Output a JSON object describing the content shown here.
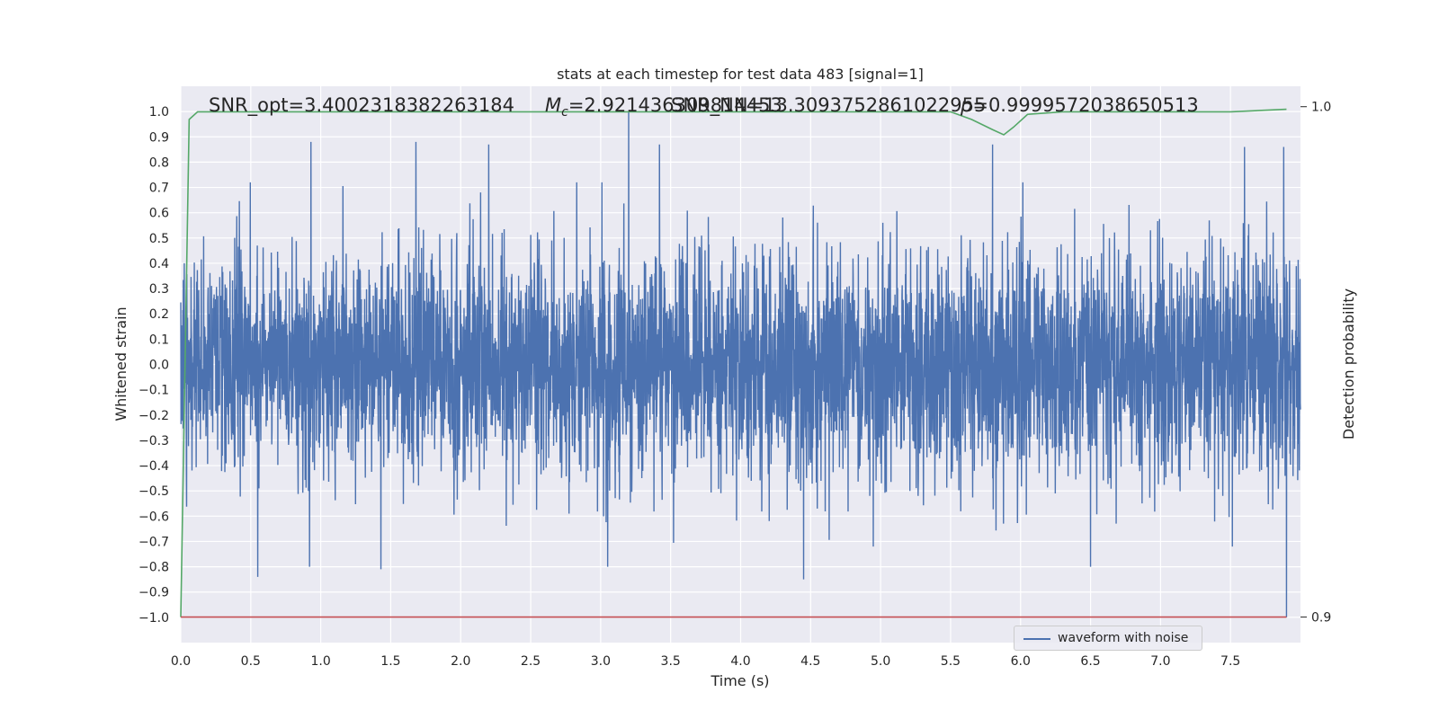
{
  "chart_data": {
    "type": "line",
    "title": "stats at each timestep for test data 483 [signal=1]",
    "xlabel": "Time (s)",
    "ylabel": "Whitened strain",
    "y2label": "Detection probability",
    "xlim": [
      0.0,
      8.0
    ],
    "ylim": [
      -1.1,
      1.1
    ],
    "y2lim": [
      0.895,
      1.004
    ],
    "xticks": [
      "0.0",
      "0.5",
      "1.0",
      "1.5",
      "2.0",
      "2.5",
      "3.0",
      "3.5",
      "4.0",
      "4.5",
      "5.0",
      "5.5",
      "6.0",
      "6.5",
      "7.0",
      "7.5"
    ],
    "yticks": [
      "1.0",
      "0.9",
      "0.8",
      "0.7",
      "0.6",
      "0.5",
      "0.4",
      "0.3",
      "0.2",
      "0.1",
      "0.0",
      "−0.1",
      "−0.2",
      "−0.3",
      "−0.4",
      "−0.5",
      "−0.6",
      "−0.7",
      "−0.8",
      "−0.9",
      "−1.0"
    ],
    "y2ticks": [
      "1.0",
      "0.9"
    ],
    "grid": true,
    "legend_position": "lower-right",
    "annotations": {
      "snr_opt": "SNR_opt=3.4002318382263184",
      "mc_prefix": "M",
      "mc_sub": "c",
      "mc_value": "=2.921436309814453",
      "snr_nn": "SNR_NN=13.3093752861022955",
      "p_value": "=0.9999572038650513"
    },
    "series": [
      {
        "name": "waveform with noise",
        "axis": "left",
        "color": "#4c72b0",
        "kind": "noise",
        "duration": 8.0,
        "sigma": 0.22,
        "y_max": 1.0,
        "y_min": -1.0,
        "spikes": [
          {
            "x": 0.93,
            "y": 0.88
          },
          {
            "x": 1.68,
            "y": 0.88
          },
          {
            "x": 2.2,
            "y": 0.87
          },
          {
            "x": 3.2,
            "y": 1.0
          },
          {
            "x": 3.42,
            "y": 0.87
          },
          {
            "x": 5.8,
            "y": 0.87
          },
          {
            "x": 7.6,
            "y": 0.86
          },
          {
            "x": 7.88,
            "y": 0.86
          },
          {
            "x": 0.55,
            "y": -0.84
          },
          {
            "x": 1.43,
            "y": -0.81
          },
          {
            "x": 0.92,
            "y": -0.8
          },
          {
            "x": 3.05,
            "y": -0.8
          },
          {
            "x": 4.45,
            "y": -0.85
          },
          {
            "x": 6.5,
            "y": -0.8
          },
          {
            "x": 7.9,
            "y": -1.0
          }
        ]
      },
      {
        "name": "",
        "axis": "right",
        "color": "#55a868",
        "kind": "line",
        "x": [
          0.0,
          0.06,
          0.12,
          0.5,
          1.0,
          2.0,
          3.0,
          4.0,
          5.0,
          5.5,
          5.65,
          5.8,
          5.88,
          5.95,
          6.05,
          6.3,
          7.0,
          7.5,
          7.9
        ],
        "y": [
          0.9,
          0.9975,
          0.999,
          0.999,
          0.999,
          0.999,
          0.999,
          0.999,
          0.999,
          0.999,
          0.9975,
          0.9955,
          0.9945,
          0.996,
          0.9985,
          0.999,
          0.999,
          0.999,
          0.9995
        ]
      },
      {
        "name": "",
        "axis": "right",
        "color": "#c44e52",
        "kind": "line",
        "x": [
          0.0,
          7.9
        ],
        "y": [
          0.9,
          0.9
        ]
      }
    ]
  }
}
